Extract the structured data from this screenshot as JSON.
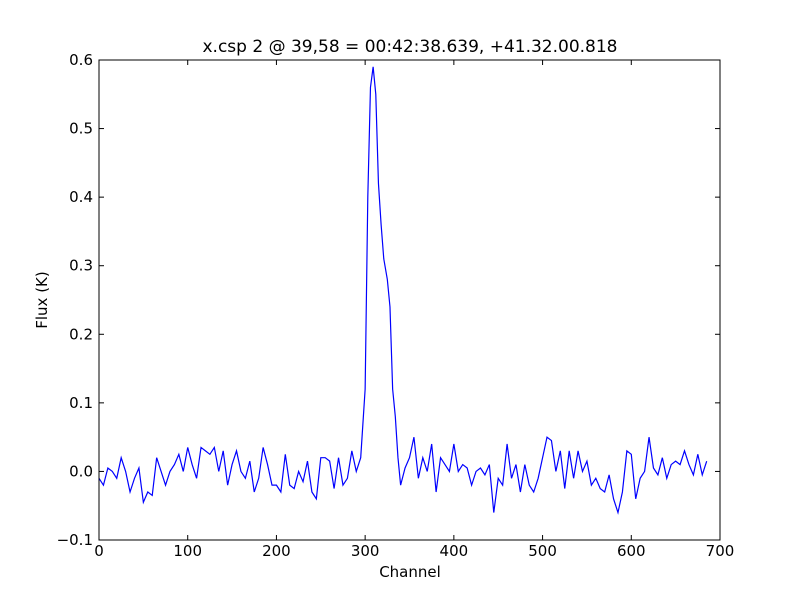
{
  "chart_data": {
    "type": "line",
    "title": "x.csp 2 @ 39,58 = 00:42:38.639, +41.32.00.818",
    "xlabel": "Channel",
    "ylabel": "Flux (K)",
    "color": "#0000ff",
    "xlim": [
      0,
      700
    ],
    "ylim": [
      -0.1,
      0.6
    ],
    "xticks": [
      0,
      100,
      200,
      300,
      400,
      500,
      600,
      700
    ],
    "yticks": [
      {
        "value": -0.1,
        "label": "−0.1"
      },
      {
        "value": 0,
        "label": "0.0"
      },
      0.1,
      0.2,
      0.3,
      0.4,
      0.5,
      0.6
    ],
    "x": [
      0,
      5,
      10,
      15,
      20,
      25,
      30,
      35,
      40,
      45,
      50,
      55,
      60,
      65,
      70,
      75,
      80,
      85,
      90,
      95,
      100,
      105,
      110,
      115,
      120,
      125,
      130,
      135,
      140,
      145,
      150,
      155,
      160,
      165,
      170,
      175,
      180,
      185,
      190,
      195,
      200,
      205,
      210,
      215,
      220,
      225,
      230,
      235,
      240,
      245,
      250,
      255,
      260,
      265,
      270,
      275,
      280,
      285,
      290,
      295,
      300,
      303,
      306,
      309,
      312,
      315,
      318,
      321,
      325,
      328,
      331,
      334,
      337,
      340,
      345,
      350,
      355,
      360,
      365,
      370,
      375,
      380,
      385,
      390,
      395,
      400,
      405,
      410,
      415,
      420,
      425,
      430,
      435,
      440,
      445,
      450,
      455,
      460,
      465,
      470,
      475,
      480,
      485,
      490,
      495,
      500,
      505,
      510,
      515,
      520,
      525,
      530,
      535,
      540,
      545,
      550,
      555,
      560,
      565,
      570,
      575,
      580,
      585,
      590,
      595,
      600,
      605,
      610,
      615,
      620,
      625,
      630,
      635,
      640,
      645,
      650,
      655,
      660,
      665,
      670,
      675,
      680,
      685
    ],
    "values": [
      -0.01,
      -0.02,
      0.005,
      0.0,
      -0.01,
      0.02,
      0.0,
      -0.03,
      -0.01,
      0.005,
      -0.045,
      -0.03,
      -0.035,
      0.02,
      0.0,
      -0.02,
      0.0,
      0.01,
      0.025,
      0.0,
      0.035,
      0.01,
      -0.01,
      0.035,
      0.03,
      0.025,
      0.035,
      0.0,
      0.03,
      -0.02,
      0.01,
      0.03,
      0.0,
      -0.01,
      0.015,
      -0.03,
      -0.01,
      0.035,
      0.01,
      -0.02,
      -0.02,
      -0.03,
      0.025,
      -0.02,
      -0.025,
      0.0,
      -0.015,
      0.015,
      -0.03,
      -0.04,
      0.02,
      0.02,
      0.015,
      -0.025,
      0.02,
      -0.02,
      -0.01,
      0.03,
      0.0,
      0.02,
      0.12,
      0.4,
      0.56,
      0.59,
      0.55,
      0.42,
      0.36,
      0.31,
      0.28,
      0.24,
      0.12,
      0.08,
      0.02,
      -0.02,
      0.005,
      0.02,
      0.05,
      -0.01,
      0.02,
      0.0,
      0.04,
      -0.03,
      0.02,
      0.01,
      0.0,
      0.04,
      0.0,
      0.01,
      0.005,
      -0.02,
      0.0,
      0.005,
      -0.005,
      0.01,
      -0.06,
      -0.01,
      -0.02,
      0.04,
      -0.01,
      0.01,
      -0.03,
      0.01,
      -0.02,
      -0.03,
      -0.01,
      0.02,
      0.05,
      0.045,
      0.0,
      0.03,
      -0.025,
      0.03,
      -0.01,
      0.03,
      0.0,
      0.015,
      -0.02,
      -0.01,
      -0.025,
      -0.03,
      -0.005,
      -0.04,
      -0.06,
      -0.03,
      0.03,
      0.025,
      -0.04,
      -0.01,
      0.0,
      0.05,
      0.005,
      -0.005,
      0.02,
      -0.01,
      0.01,
      0.015,
      0.01,
      0.03,
      0.01,
      -0.005,
      0.025,
      -0.005,
      0.015
    ]
  }
}
